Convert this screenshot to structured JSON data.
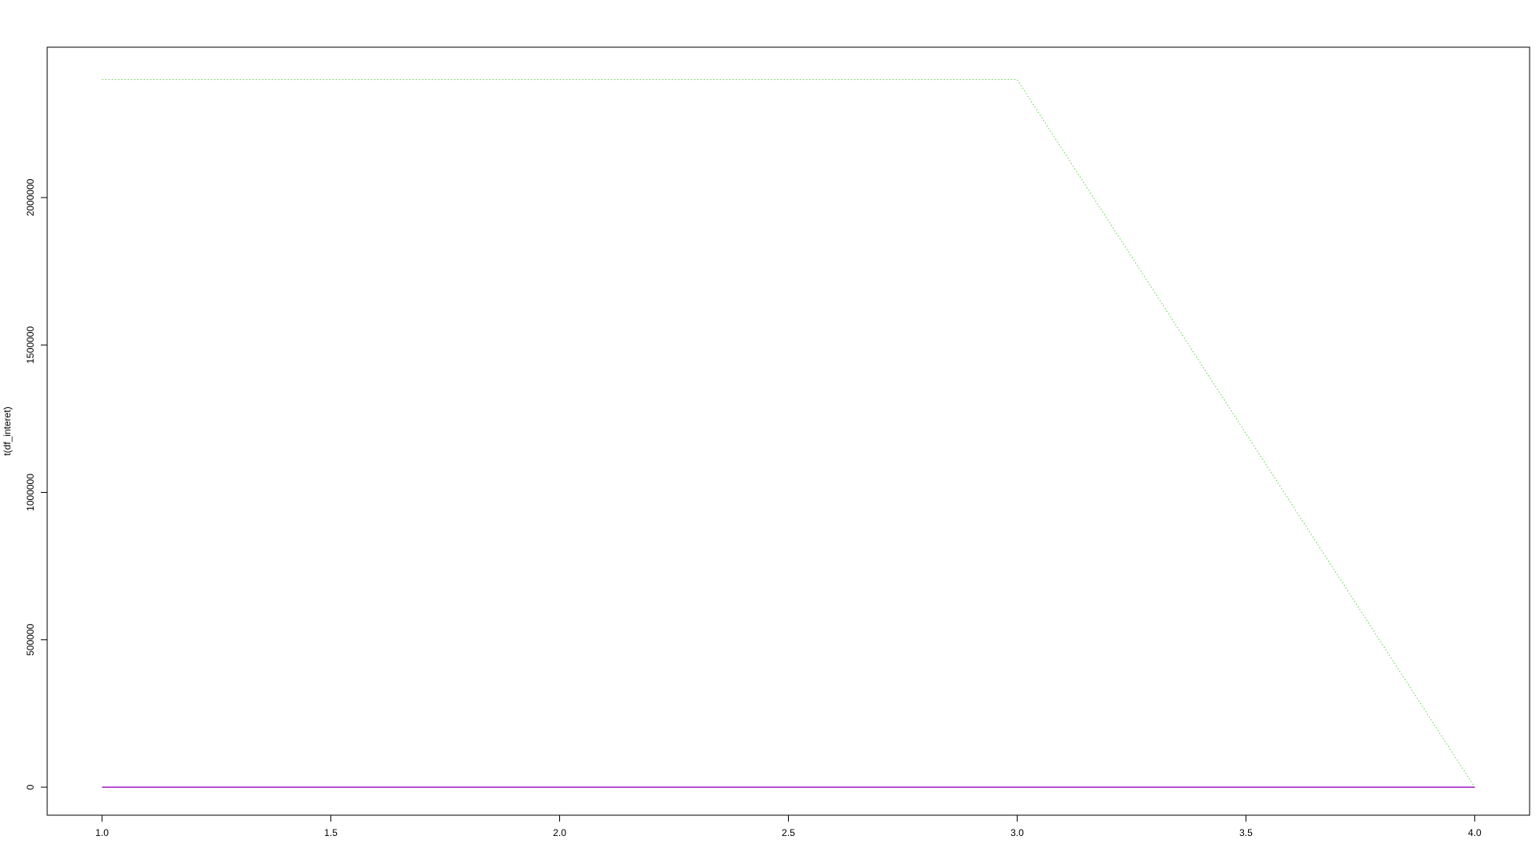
{
  "chart_data": {
    "type": "line",
    "title": "",
    "xlabel": "",
    "ylabel": "t(df_interet)",
    "x": [
      1,
      2,
      3,
      4
    ],
    "xlim": [
      0.88,
      4.12
    ],
    "ylim": [
      -95000,
      2510000
    ],
    "x_ticks": [
      {
        "value": 1.0,
        "label": "1.0"
      },
      {
        "value": 1.5,
        "label": "1.5"
      },
      {
        "value": 2.0,
        "label": "2.0"
      },
      {
        "value": 2.5,
        "label": "2.5"
      },
      {
        "value": 3.0,
        "label": "3.0"
      },
      {
        "value": 3.5,
        "label": "3.5"
      },
      {
        "value": 4.0,
        "label": "4.0"
      }
    ],
    "y_ticks": [
      {
        "value": 0,
        "label": "0"
      },
      {
        "value": 500000,
        "label": "500000"
      },
      {
        "value": 1000000,
        "label": "1000000"
      },
      {
        "value": 1500000,
        "label": "1500000"
      },
      {
        "value": 2000000,
        "label": "2000000"
      }
    ],
    "grid": false,
    "legend": "none",
    "series": [
      {
        "values": [
          2400000,
          2400000,
          2400000,
          0
        ],
        "color": "#61D04F",
        "style": "dotted"
      },
      {
        "values": [
          0,
          0,
          0,
          0
        ],
        "color": "#2297E6",
        "style": "dotted"
      },
      {
        "values": [
          0,
          0,
          0,
          0
        ],
        "color": "#DF536B",
        "style": "solid"
      },
      {
        "values": [
          0,
          0,
          0,
          0
        ],
        "color": "#000000",
        "style": "dashed"
      },
      {
        "values": [
          0,
          0,
          0,
          0
        ],
        "color": "#9400D3",
        "style": "solid"
      }
    ]
  }
}
